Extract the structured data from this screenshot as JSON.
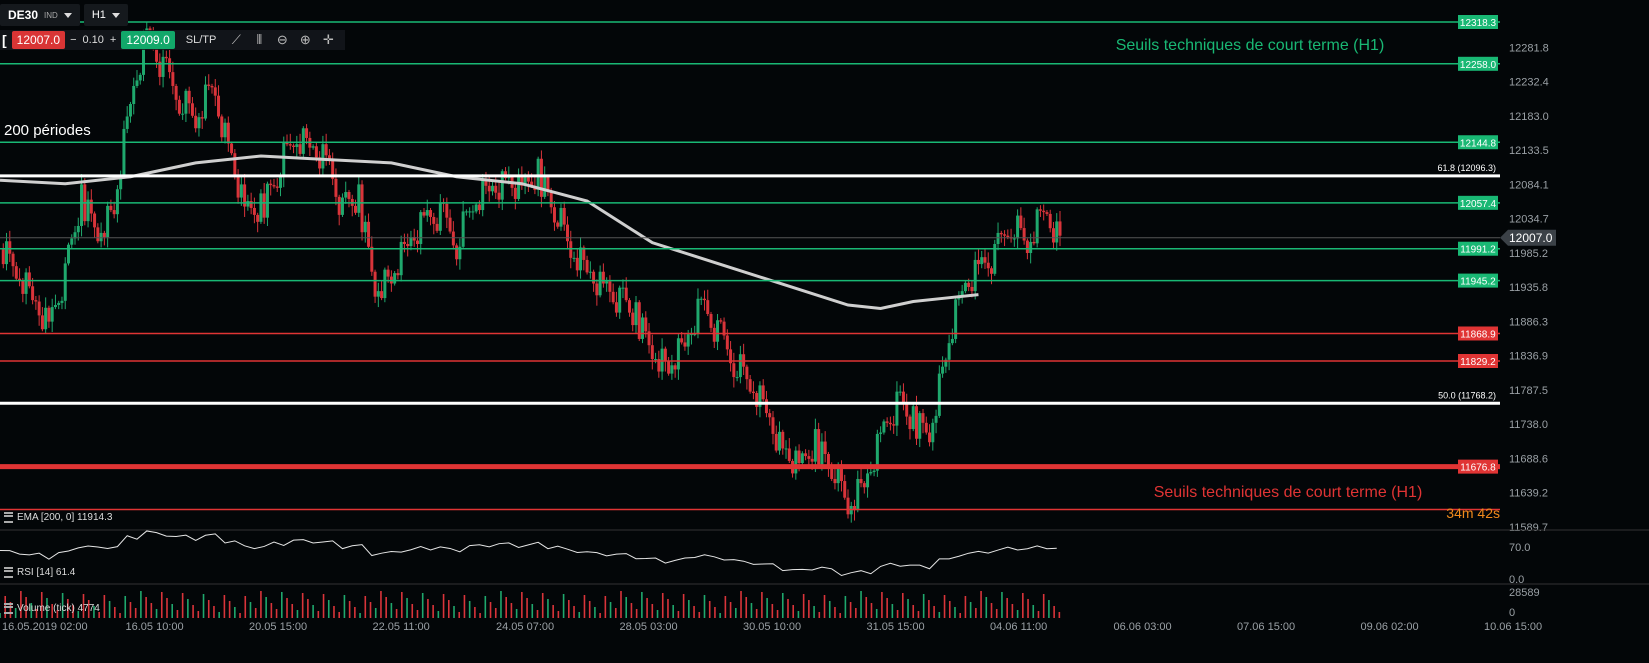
{
  "toolbar": {
    "symbol": "DE30",
    "symbol_type": "IND",
    "timeframe": "H1",
    "bracket": "[",
    "sell_price": "12007.0",
    "qty_minus": "−",
    "qty_value": "0.10",
    "qty_plus": "+",
    "buy_price": "12009.0",
    "sltp_label": "SL/TP",
    "tools": [
      "line-chart-icon",
      "candles-icon",
      "zoom-out-icon",
      "zoom-in-icon",
      "crosshair-icon"
    ]
  },
  "annotations": {
    "periods_label": "200 périodes",
    "green_title": "Seuils techniques de court terme (H1)",
    "red_title": "Seuils techniques de court terme (H1)",
    "countdown": "34m 42s"
  },
  "colors": {
    "background": "#030608",
    "green": "#19b874",
    "red": "#e03434",
    "white": "#ffffff",
    "ema": "#cfcfcf",
    "candle_up": "#1fa86d",
    "candle_down": "#d9343a"
  },
  "indicators": {
    "ema_label": "EMA [200, 0] 11914.3",
    "rsi_label": "RSI [14] 61.4",
    "volume_label": "Volume (tick) 4774"
  },
  "chart_data": {
    "type": "candlestick",
    "symbol": "DE30",
    "timeframe": "H1",
    "current_price": 12007.0,
    "current_price_label": "12007.0",
    "y_ticks": [
      "12281.8",
      "12232.4",
      "12183.0",
      "12133.5",
      "12084.1",
      "12034.7",
      "11985.2",
      "11935.8",
      "11886.3",
      "11836.9",
      "11787.5",
      "11738.0",
      "11688.6",
      "11639.2",
      "11589.7"
    ],
    "y_tick_values": [
      12281.8,
      12232.4,
      12183.0,
      12133.5,
      12084.1,
      12034.7,
      11985.2,
      11935.8,
      11886.3,
      11836.9,
      11787.5,
      11738.0,
      11688.6,
      11639.2,
      11589.7
    ],
    "x_ticks": [
      "16.05.2019 02:00",
      "16.05 10:00",
      "20.05 15:00",
      "22.05 11:00",
      "24.05 07:00",
      "28.05 03:00",
      "30.05 10:00",
      "31.05 15:00",
      "04.06 11:00",
      "06.06 03:00",
      "07.06 15:00",
      "09.06 02:00",
      "10.06 15:00"
    ],
    "levels": [
      {
        "value": 12318.3,
        "label": "12318.3",
        "color": "green",
        "kind": "support-resistance"
      },
      {
        "value": 12258.0,
        "label": "12258.0",
        "color": "green",
        "kind": "support-resistance"
      },
      {
        "value": 12144.8,
        "label": "12144.8",
        "color": "green",
        "kind": "support-resistance"
      },
      {
        "value": 12057.4,
        "label": "12057.4",
        "color": "green",
        "kind": "support-resistance"
      },
      {
        "value": 11991.2,
        "label": "11991.2",
        "color": "green",
        "kind": "support-resistance"
      },
      {
        "value": 11945.2,
        "label": "11945.2",
        "color": "green",
        "kind": "support-resistance"
      },
      {
        "value": 11868.9,
        "label": "11868.9",
        "color": "red",
        "kind": "support-resistance"
      },
      {
        "value": 11829.2,
        "label": "11829.2",
        "color": "red",
        "kind": "support-resistance"
      },
      {
        "value": 11676.8,
        "label": "11676.8",
        "color": "red",
        "kind": "support-resistance",
        "thick": true
      },
      {
        "value": 11615.0,
        "label": "",
        "color": "red",
        "kind": "support-resistance"
      }
    ],
    "fibonacci": [
      {
        "value": 12096.3,
        "label": "61.8 (12096.3)"
      },
      {
        "value": 11768.2,
        "label": "50.0 (11768.2)"
      }
    ],
    "price_path": [
      [
        0,
        11990
      ],
      [
        5,
        11960
      ],
      [
        10,
        11920
      ],
      [
        15,
        11880
      ],
      [
        20,
        11955
      ],
      [
        25,
        12060
      ],
      [
        30,
        12020
      ],
      [
        35,
        12050
      ],
      [
        40,
        12200
      ],
      [
        45,
        12300
      ],
      [
        50,
        12250
      ],
      [
        55,
        12210
      ],
      [
        60,
        12180
      ],
      [
        65,
        12230
      ],
      [
        70,
        12140
      ],
      [
        75,
        12040
      ],
      [
        80,
        12050
      ],
      [
        85,
        12100
      ],
      [
        90,
        12150
      ],
      [
        95,
        12140
      ],
      [
        100,
        12120
      ],
      [
        105,
        12050
      ],
      [
        110,
        12060
      ],
      [
        115,
        11940
      ],
      [
        120,
        11950
      ],
      [
        125,
        11995
      ],
      [
        130,
        12030
      ],
      [
        135,
        12040
      ],
      [
        140,
        12000
      ],
      [
        145,
        12060
      ],
      [
        150,
        12080
      ],
      [
        155,
        12090
      ],
      [
        160,
        12070
      ],
      [
        165,
        12100
      ],
      [
        170,
        12050
      ],
      [
        175,
        11990
      ],
      [
        180,
        11960
      ],
      [
        185,
        11935
      ],
      [
        190,
        11920
      ],
      [
        195,
        11890
      ],
      [
        200,
        11850
      ],
      [
        205,
        11820
      ],
      [
        210,
        11850
      ],
      [
        215,
        11910
      ],
      [
        220,
        11870
      ],
      [
        225,
        11830
      ],
      [
        230,
        11800
      ],
      [
        235,
        11760
      ],
      [
        240,
        11700
      ],
      [
        245,
        11670
      ],
      [
        250,
        11710
      ],
      [
        255,
        11680
      ],
      [
        260,
        11620
      ],
      [
        265,
        11650
      ],
      [
        270,
        11720
      ],
      [
        275,
        11770
      ],
      [
        280,
        11740
      ],
      [
        285,
        11730
      ],
      [
        290,
        11840
      ],
      [
        295,
        11930
      ],
      [
        300,
        11960
      ],
      [
        305,
        11980
      ],
      [
        310,
        12030
      ],
      [
        315,
        12000
      ],
      [
        320,
        12050
      ],
      [
        325,
        12007
      ]
    ],
    "ema200_path": [
      [
        0,
        12090
      ],
      [
        20,
        12085
      ],
      [
        40,
        12095
      ],
      [
        60,
        12115
      ],
      [
        80,
        12125
      ],
      [
        100,
        12120
      ],
      [
        120,
        12115
      ],
      [
        140,
        12095
      ],
      [
        160,
        12085
      ],
      [
        180,
        12060
      ],
      [
        200,
        12000
      ],
      [
        220,
        11970
      ],
      [
        240,
        11940
      ],
      [
        260,
        11910
      ],
      [
        270,
        11905
      ],
      [
        280,
        11915
      ],
      [
        290,
        11920
      ],
      [
        300,
        11925
      ]
    ],
    "rsi_range": [
      0.0,
      70.0
    ],
    "rsi_ticks": [
      "70.0",
      "0.0"
    ],
    "volume_ticks": [
      "28589",
      "0"
    ]
  }
}
